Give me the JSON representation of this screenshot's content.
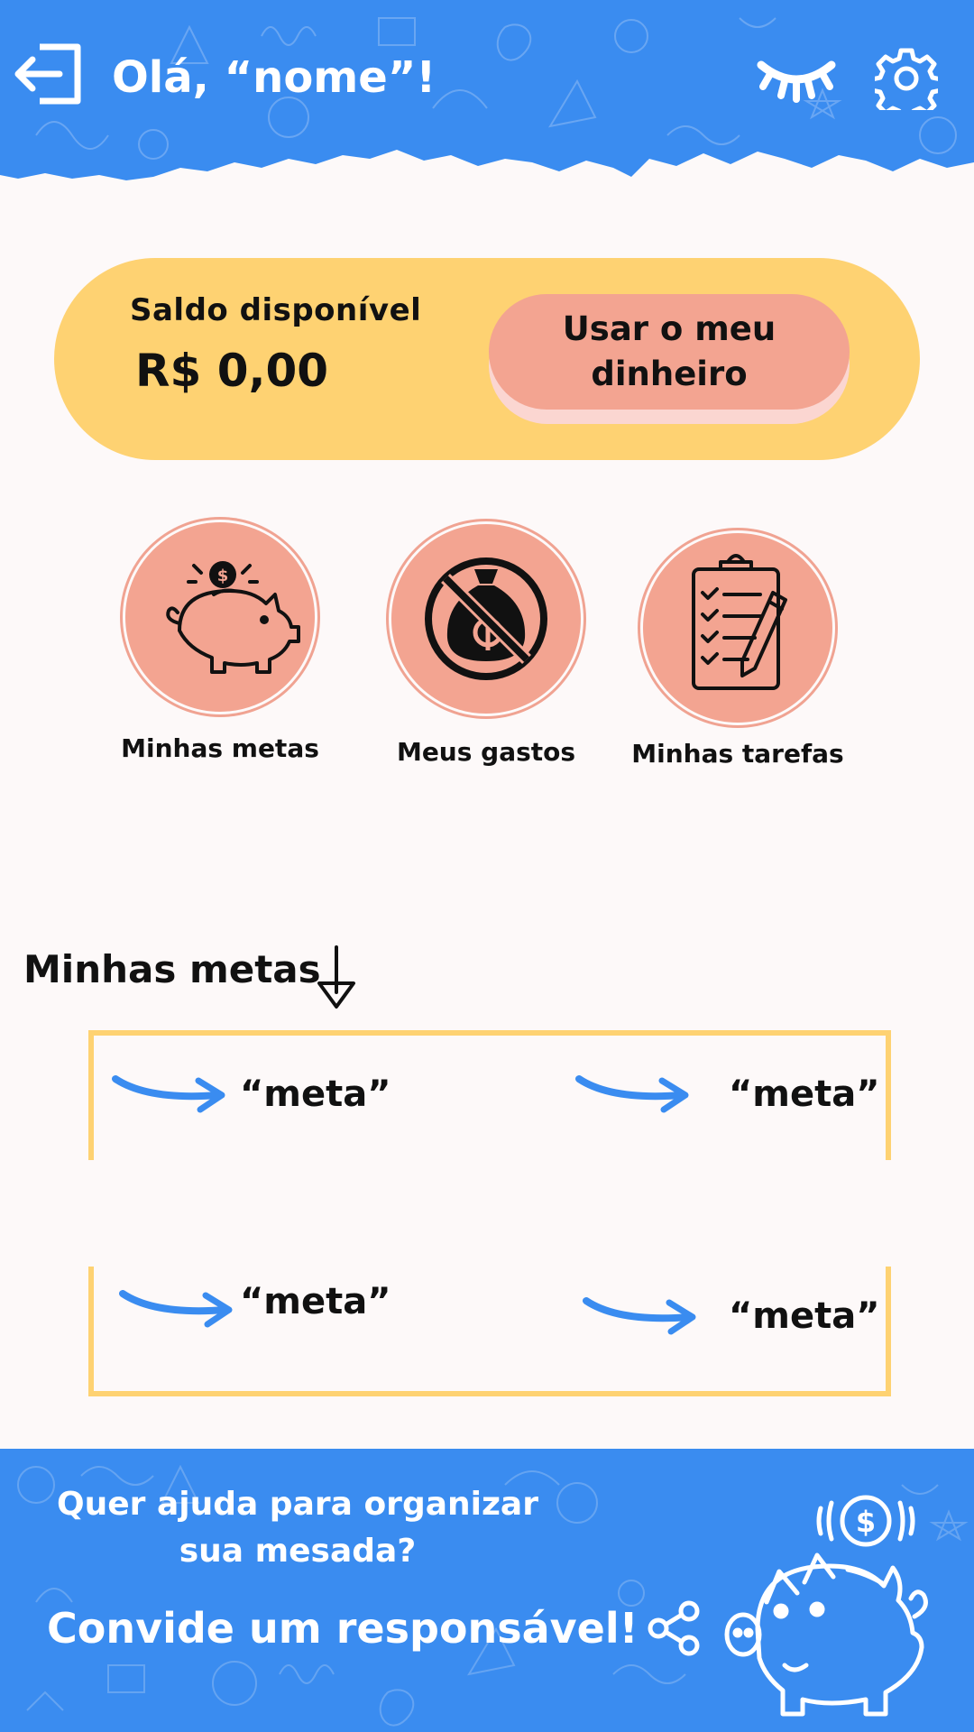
{
  "header": {
    "greeting": "Olá, “nome”!",
    "background_color": "#3a8cf0"
  },
  "balance": {
    "label": "Saldo disponível",
    "value": "R$ 0,00",
    "button_label": "Usar o meu dinheiro",
    "card_color": "#fed272",
    "button_color": "#f3a491"
  },
  "shortcuts": [
    {
      "label": "Minhas metas",
      "icon": "piggy-bank-icon"
    },
    {
      "label": "Meus gastos",
      "icon": "no-money-bag-icon"
    },
    {
      "label": "Minhas tarefas",
      "icon": "clipboard-checklist-icon"
    }
  ],
  "goals": {
    "title": "Minhas metas",
    "items": [
      "“meta”",
      "“meta”",
      "“meta”",
      "“meta”"
    ],
    "frame_color": "#fed272",
    "arrow_color": "#3a8cf0"
  },
  "footer": {
    "help_text": "Quer ajuda para organizar sua mesada?",
    "invite_label": "Convide um responsável!"
  }
}
